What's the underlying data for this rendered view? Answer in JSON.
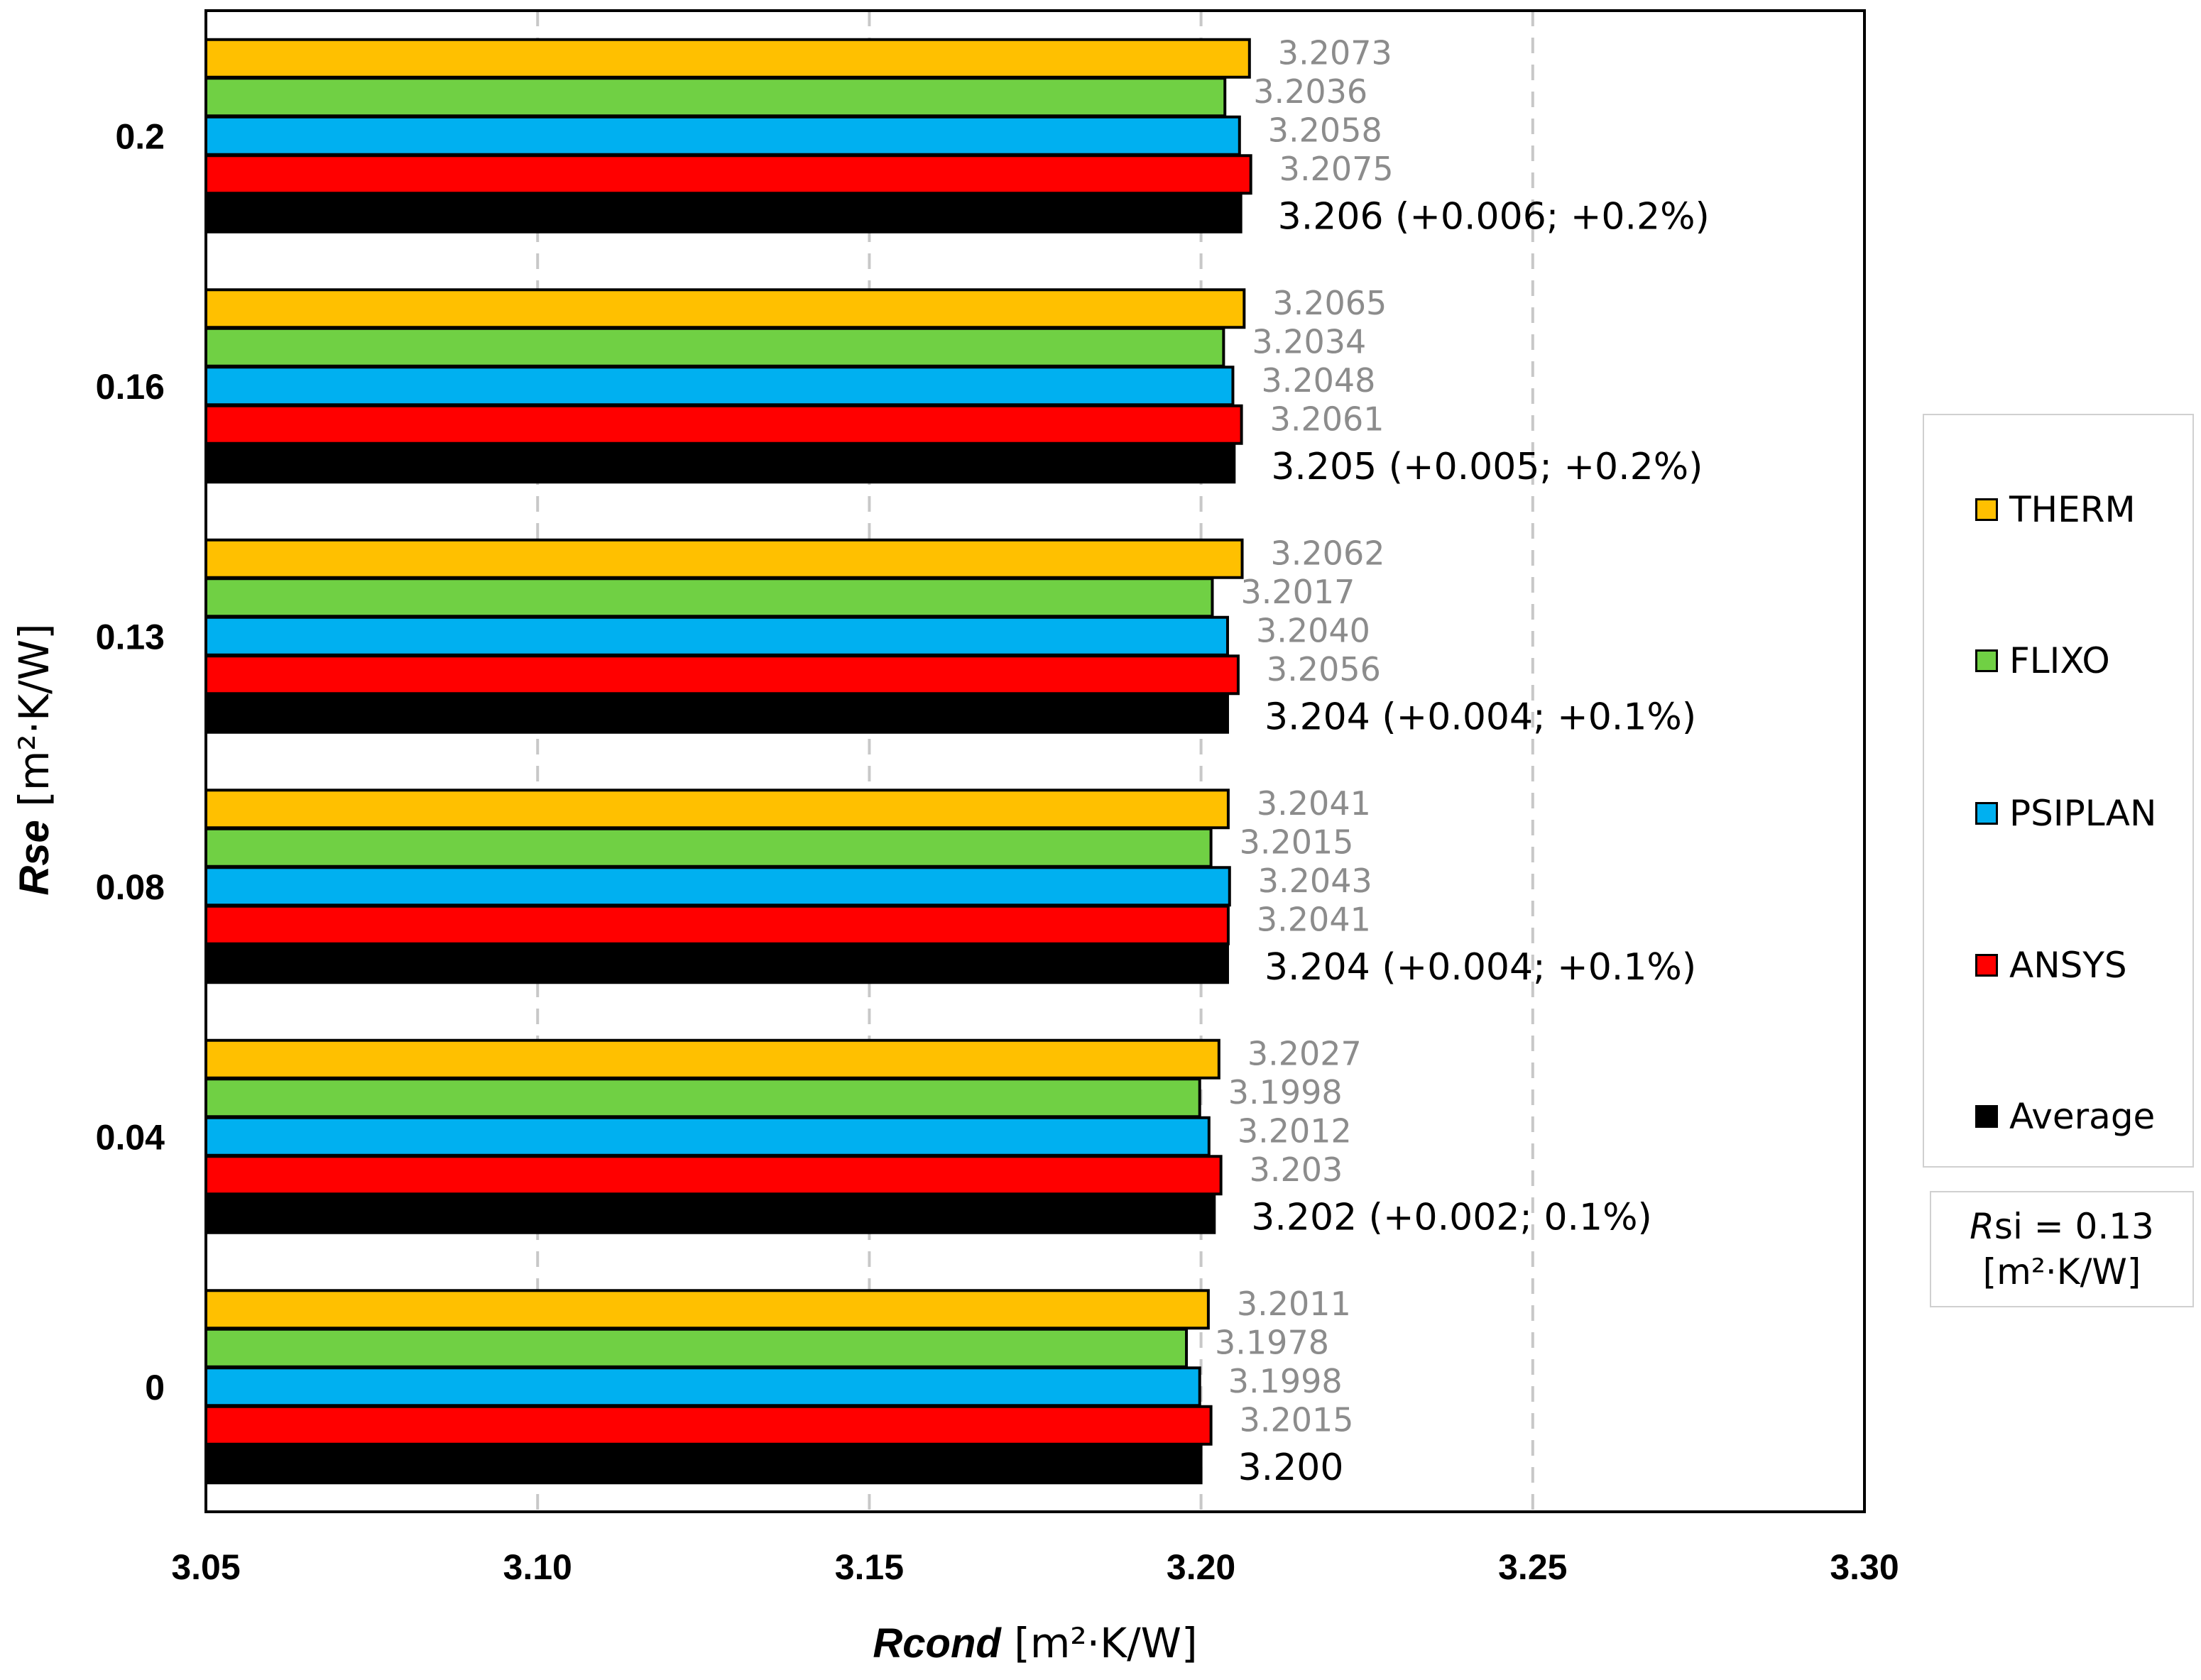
{
  "chart_data": {
    "type": "bar",
    "orientation": "horizontal",
    "categories": [
      "0.2",
      "0.16",
      "0.13",
      "0.08",
      "0.04",
      "0"
    ],
    "series": [
      {
        "name": "THERM",
        "color": "#FFC000",
        "values": [
          3.2073,
          3.2065,
          3.2062,
          3.2041,
          3.2027,
          3.2011
        ],
        "labels": [
          "3.2073",
          "3.2065",
          "3.2062",
          "3.2041",
          "3.2027",
          "3.2011"
        ]
      },
      {
        "name": "FLIXO",
        "color": "#70D044",
        "values": [
          3.2036,
          3.2034,
          3.2017,
          3.2015,
          3.1998,
          3.1978
        ],
        "labels": [
          "3.2036",
          "3.2034",
          "3.2017",
          "3.2015",
          "3.1998",
          "3.1978"
        ]
      },
      {
        "name": "PSIPLAN",
        "color": "#00B0F0",
        "values": [
          3.2058,
          3.2048,
          3.204,
          3.2043,
          3.2012,
          3.1998
        ],
        "labels": [
          "3.2058",
          "3.2048",
          "3.2040",
          "3.2043",
          "3.2012",
          "3.1998"
        ]
      },
      {
        "name": "ANSYS",
        "color": "#FF0000",
        "values": [
          3.2075,
          3.2061,
          3.2056,
          3.2041,
          3.203,
          3.2015
        ],
        "labels": [
          "3.2075",
          "3.2061",
          "3.2056",
          "3.2041",
          "3.203",
          "3.2015"
        ]
      },
      {
        "name": "Average",
        "color": "#000000",
        "values": [
          3.206,
          3.205,
          3.204,
          3.204,
          3.202,
          3.2
        ],
        "labels": [
          "3.206 (+0.006; +0.2%)",
          "3.205 (+0.005; +0.2%)",
          "3.204 (+0.004; +0.1%)",
          "3.204 (+0.004; +0.1%)",
          "3.202 (+0.002; 0.1%)",
          "3.200"
        ]
      }
    ],
    "xlim": [
      3.05,
      3.3
    ],
    "xticks": [
      "3.05",
      "3.10",
      "3.15",
      "3.20",
      "3.25",
      "3.30"
    ],
    "xlabel_bold": "Rcond",
    "xlabel_unit": "[m²·K/W]",
    "ylabel_bold": "Rse",
    "ylabel_unit": "[m²·K/W]",
    "grid": "vertical dashed",
    "legend_position": "right",
    "annotation": {
      "italic": "R",
      "text": "si = 0.13",
      "unit": "[m²·K/W]"
    }
  }
}
